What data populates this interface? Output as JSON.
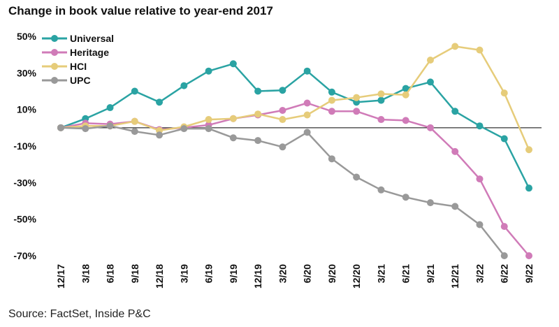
{
  "title": "Change in book value relative to year-end 2017",
  "source": "Source: FactSet, Inside P&C",
  "chart_data": {
    "type": "line",
    "title": "Change in book value relative to year-end 2017",
    "xlabel": "",
    "ylabel": "",
    "ylim": [
      -70,
      50
    ],
    "yticks": [
      50,
      30,
      10,
      -10,
      -30,
      -50,
      -70
    ],
    "ytick_labels": [
      "50%",
      "30%",
      "10%",
      "-10%",
      "-30%",
      "-50%",
      "-70%"
    ],
    "categories": [
      "12/17",
      "3/18",
      "6/18",
      "9/18",
      "12/18",
      "3/19",
      "6/19",
      "9/19",
      "12/19",
      "3/20",
      "6/20",
      "9/20",
      "12/20",
      "3/21",
      "6/21",
      "9/21",
      "12/21",
      "3/22",
      "6/22",
      "9/22"
    ],
    "legend_position": "top-left",
    "series": [
      {
        "name": "Universal",
        "color": "#2aa3a3",
        "values": [
          0,
          5,
          11,
          20,
          14,
          23,
          31,
          35,
          20,
          20.5,
          31,
          19.5,
          14,
          15,
          21.5,
          25,
          9,
          1,
          -6,
          -33
        ]
      },
      {
        "name": "Heritage",
        "color": "#d07bb8",
        "values": [
          0,
          2.5,
          2,
          3.5,
          -1,
          0,
          1.5,
          5,
          7,
          9.5,
          13.5,
          9,
          9,
          4.5,
          4,
          0,
          -13,
          -28,
          -54,
          -70
        ]
      },
      {
        "name": "HCI",
        "color": "#e6cc7a",
        "values": [
          0,
          1,
          1,
          3.5,
          -1.5,
          0.5,
          4.5,
          5,
          7.5,
          4.5,
          7,
          15,
          16.5,
          18.5,
          18,
          37,
          44.5,
          42.5,
          19,
          -12
        ]
      },
      {
        "name": "UPC",
        "color": "#999999",
        "values": [
          0,
          -0.5,
          1,
          -2,
          -4,
          -0.5,
          -0.5,
          -5.5,
          -7,
          -10.5,
          -2.5,
          -17,
          -27,
          -34,
          -38,
          -41,
          -43,
          -53,
          -70,
          null
        ]
      }
    ]
  }
}
